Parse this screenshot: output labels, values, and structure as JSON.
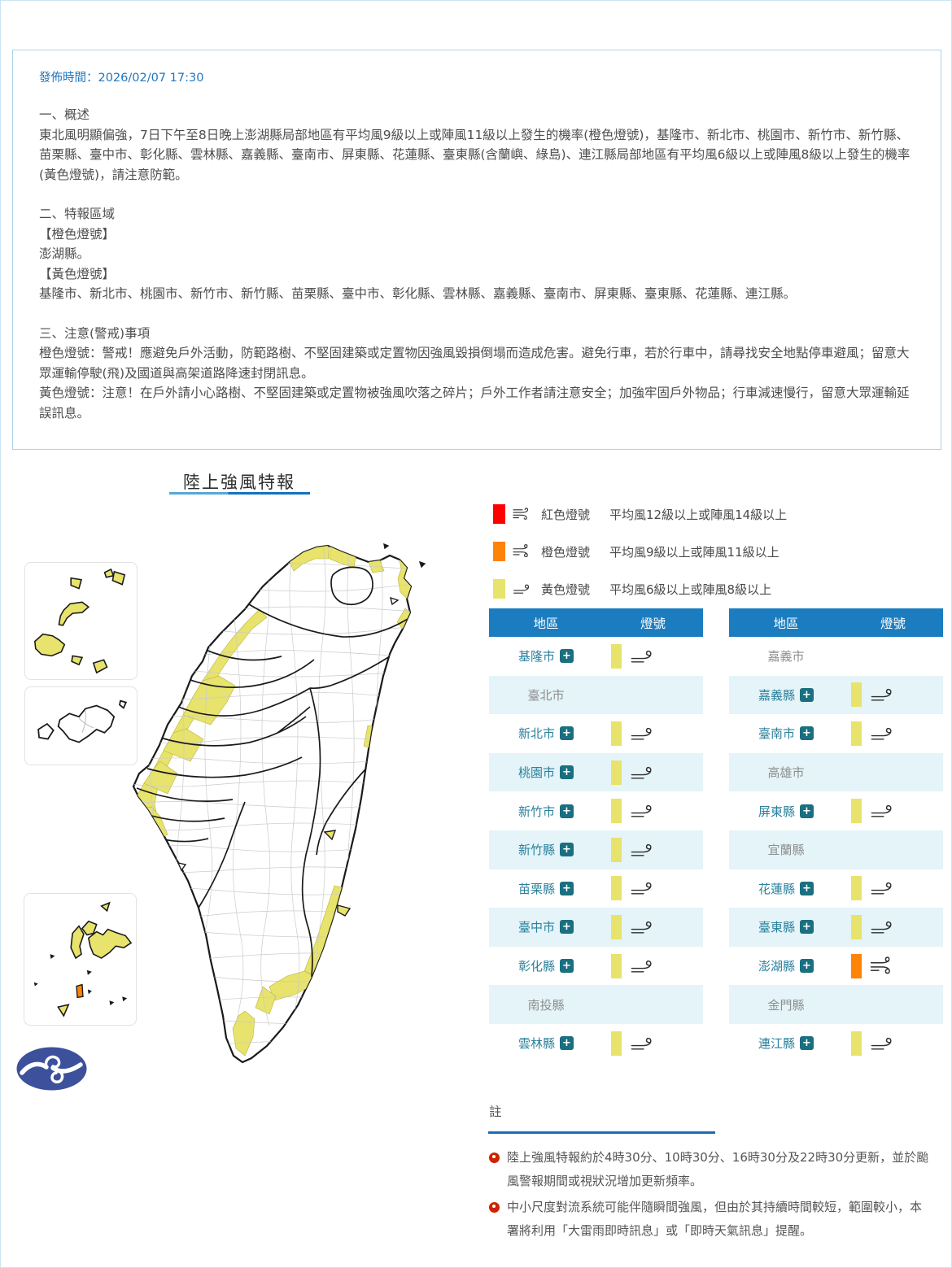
{
  "page": {
    "publish_label": "發佈時間：2026/02/07 17:30",
    "summary": {
      "section1_title": "一、概述",
      "section1_body": "東北風明顯偏強，7日下午至8日晚上澎湖縣局部地區有平均風9級以上或陣風11級以上發生的機率(橙色燈號)，基隆市、新北市、桃園市、新竹市、新竹縣、苗栗縣、臺中市、彰化縣、雲林縣、嘉義縣、臺南市、屏東縣、花蓮縣、臺東縣(含蘭嶼、綠島)、連江縣局部地區有平均風6級以上或陣風8級以上發生的機率(黃色燈號)，請注意防範。",
      "section2_title": "二、特報區域",
      "orange_label": "【橙色燈號】",
      "orange_areas": "澎湖縣。",
      "yellow_label": "【黃色燈號】",
      "yellow_areas": "基隆市、新北市、桃園市、新竹市、新竹縣、苗栗縣、臺中市、彰化縣、雲林縣、嘉義縣、臺南市、屏東縣、臺東縣、花蓮縣、連江縣。",
      "section3_title": "三、注意(警戒)事項",
      "orange_note": "橙色燈號：警戒！應避免戶外活動，防範路樹、不堅固建築或定置物因強風毀損倒塌而造成危害。避免行車，若於行車中，請尋找安全地點停車避風；留意大眾運輸停駛(飛)及國道與高架道路降速封閉訊息。",
      "yellow_note": "黃色燈號：注意！在戶外請小心路樹、不堅固建築或定置物被強風吹落之碎片；戶外工作者請注意安全；加強牢固戶外物品；行車減速慢行，留意大眾運輸延誤訊息。"
    },
    "map_title": "陸上強風特報",
    "legend": [
      {
        "name": "red",
        "color": "#fe0000",
        "icon": "wind-3-lines-icon",
        "label": "紅色燈號",
        "desc": "平均風12級以上或陣風14級以上"
      },
      {
        "name": "orange",
        "color": "#fd8408",
        "icon": "wind-2-lines-icon",
        "label": "橙色燈號",
        "desc": "平均風9級以上或陣風11級以上"
      },
      {
        "name": "yellow",
        "color": "#e7e36c",
        "icon": "wind-1-line-icon",
        "label": "黃色燈號",
        "desc": "平均風6級以上或陣風8級以上"
      }
    ],
    "tables": {
      "header": {
        "region": "地區",
        "signal": "燈號"
      },
      "expand_glyph": "+",
      "left_rows": [
        {
          "name": "基隆市",
          "signal": "yellow"
        },
        {
          "name": "臺北市",
          "signal": "none"
        },
        {
          "name": "新北市",
          "signal": "yellow"
        },
        {
          "name": "桃園市",
          "signal": "yellow"
        },
        {
          "name": "新竹市",
          "signal": "yellow"
        },
        {
          "name": "新竹縣",
          "signal": "yellow"
        },
        {
          "name": "苗栗縣",
          "signal": "yellow"
        },
        {
          "name": "臺中市",
          "signal": "yellow"
        },
        {
          "name": "彰化縣",
          "signal": "yellow"
        },
        {
          "name": "南投縣",
          "signal": "none"
        },
        {
          "name": "雲林縣",
          "signal": "yellow"
        }
      ],
      "right_rows": [
        {
          "name": "嘉義市",
          "signal": "none"
        },
        {
          "name": "嘉義縣",
          "signal": "yellow"
        },
        {
          "name": "臺南市",
          "signal": "yellow"
        },
        {
          "name": "高雄市",
          "signal": "none"
        },
        {
          "name": "屏東縣",
          "signal": "yellow"
        },
        {
          "name": "宜蘭縣",
          "signal": "none"
        },
        {
          "name": "花蓮縣",
          "signal": "yellow"
        },
        {
          "name": "臺東縣",
          "signal": "yellow"
        },
        {
          "name": "澎湖縣",
          "signal": "orange"
        },
        {
          "name": "金門縣",
          "signal": "none"
        },
        {
          "name": "連江縣",
          "signal": "yellow"
        }
      ]
    },
    "notes": {
      "title": "註",
      "bullets": [
        "陸上強風特報約於4時30分、10時30分、16時30分及22時30分更新，並於颱風警報期間或視狀況增加更新頻率。",
        "中小尺度對流系統可能伴隨瞬間強風，但由於其持續時間較短，範圍較小，本署將利用「大雷雨即時訊息」或「即時天氣訊息」提醒。"
      ]
    },
    "colors": {
      "red": "#fe0000",
      "orange": "#fd8408",
      "yellow": "#e7e36c",
      "header_blue": "#1b7dc0",
      "row_alt": "#e4f4f8",
      "county_active": "#2a809d",
      "county_inactive": "#8f8f8f",
      "link_blue": "#2077c0"
    }
  }
}
